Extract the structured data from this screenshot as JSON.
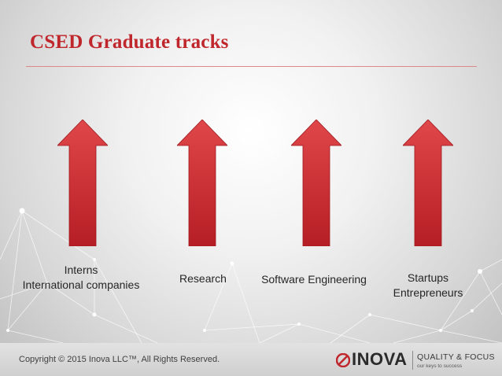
{
  "slide": {
    "title": "CSED Graduate tracks",
    "accent_color": "#c0272d",
    "tracks": [
      {
        "line1": "Interns",
        "line2": "International companies"
      },
      {
        "line1": "Research",
        "line2": ""
      },
      {
        "line1": "Software Engineering",
        "line2": ""
      },
      {
        "line1": "Startups",
        "line2": "Entrepreneurs"
      }
    ],
    "arrow_icon": "up-arrow-icon"
  },
  "footer": {
    "copyright": "Copyright © 2015 Inova LLC™, All Rights Reserved.",
    "logo_text": "INOVA",
    "slogan": "QUALITY & FOCUS",
    "subslogan": "our keys to success"
  }
}
